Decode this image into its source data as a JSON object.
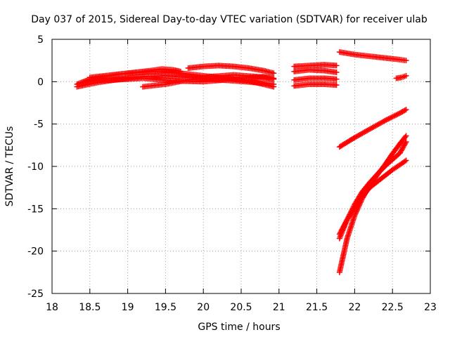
{
  "chart_data": {
    "type": "scatter",
    "title": "Day 037 of 2015, Sidereal Day-to-day VTEC variation (SDTVAR) for receiver ulab",
    "xlabel": "GPS time / hours",
    "ylabel": "SDTVAR / TECUs",
    "xlim": [
      18,
      23
    ],
    "ylim": [
      -25,
      5
    ],
    "xticks": [
      "18",
      "18.5",
      "19",
      "19.5",
      "20",
      "20.5",
      "21",
      "21.5",
      "22",
      "22.5",
      "23"
    ],
    "yticks": [
      "5",
      "0",
      "-5",
      "-10",
      "-15",
      "-20",
      "-25"
    ],
    "grid": true,
    "marker": "+",
    "color": "#ff0000",
    "series": [
      {
        "x": [
          18.33,
          18.5,
          18.7,
          18.9,
          19.1,
          19.3,
          19.45,
          19.6,
          19.7
        ],
        "y": [
          -0.3,
          0.3,
          0.6,
          0.9,
          1.1,
          1.3,
          1.5,
          1.4,
          1.2
        ]
      },
      {
        "x": [
          19.8,
          20.0,
          20.2,
          20.4,
          20.6,
          20.8,
          20.93
        ],
        "y": [
          1.6,
          1.8,
          1.9,
          1.8,
          1.6,
          1.3,
          1.0
        ]
      },
      {
        "x": [
          18.33,
          18.6,
          18.9,
          19.2,
          19.5,
          19.8,
          20.1,
          20.4,
          20.7,
          20.93
        ],
        "y": [
          -0.6,
          -0.1,
          0.3,
          0.6,
          0.7,
          0.5,
          0.3,
          0.1,
          -0.1,
          -0.3
        ]
      },
      {
        "x": [
          18.45,
          18.8,
          19.2,
          19.6,
          20.0,
          20.4,
          20.8,
          20.93
        ],
        "y": [
          0.0,
          0.2,
          0.4,
          0.1,
          0.0,
          0.3,
          0.6,
          0.4
        ]
      },
      {
        "x": [
          19.2,
          19.5,
          19.8,
          20.1,
          20.4,
          20.7,
          20.93
        ],
        "y": [
          -0.6,
          -0.3,
          0.2,
          0.6,
          0.8,
          0.6,
          0.3
        ]
      },
      {
        "x": [
          18.5,
          18.9,
          19.3,
          19.7,
          20.0,
          20.3,
          20.6,
          20.93
        ],
        "y": [
          0.5,
          0.9,
          1.2,
          1.0,
          0.7,
          0.4,
          0.1,
          -0.6
        ]
      },
      {
        "x": [
          21.2,
          21.4,
          21.6,
          21.76
        ],
        "y": [
          1.8,
          1.9,
          2.0,
          1.9
        ]
      },
      {
        "x": [
          21.2,
          21.4,
          21.6,
          21.76
        ],
        "y": [
          1.2,
          1.4,
          1.3,
          1.1
        ]
      },
      {
        "x": [
          21.2,
          21.4,
          21.6,
          21.76
        ],
        "y": [
          0.2,
          0.4,
          0.4,
          0.3
        ]
      },
      {
        "x": [
          21.2,
          21.4,
          21.6,
          21.76
        ],
        "y": [
          -0.5,
          -0.3,
          -0.3,
          -0.4
        ]
      },
      {
        "x": [
          21.8,
          22.0,
          22.2,
          22.4,
          22.6,
          22.68
        ],
        "y": [
          3.5,
          3.2,
          3.0,
          2.8,
          2.6,
          2.5
        ]
      },
      {
        "x": [
          22.55,
          22.62,
          22.68
        ],
        "y": [
          0.4,
          0.5,
          0.7
        ]
      },
      {
        "x": [
          21.8,
          22.0,
          22.2,
          22.4,
          22.6,
          22.68
        ],
        "y": [
          -7.7,
          -6.6,
          -5.6,
          -4.6,
          -3.7,
          -3.3
        ]
      },
      {
        "x": [
          21.8,
          21.9,
          22.0,
          22.1,
          22.2,
          22.3,
          22.4,
          22.5,
          22.6,
          22.68
        ],
        "y": [
          -22.5,
          -18.5,
          -15.8,
          -13.8,
          -12.3,
          -11.0,
          -9.8,
          -8.5,
          -7.3,
          -6.4
        ]
      },
      {
        "x": [
          21.8,
          21.9,
          22.0,
          22.1,
          22.2,
          22.3,
          22.4,
          22.5,
          22.6,
          22.68
        ],
        "y": [
          -18.5,
          -16.3,
          -14.5,
          -13.0,
          -11.9,
          -10.9,
          -10.0,
          -9.2,
          -8.4,
          -7.1
        ]
      },
      {
        "x": [
          21.8,
          21.9,
          22.0,
          22.1,
          22.2,
          22.3,
          22.4,
          22.5,
          22.6,
          22.68
        ],
        "y": [
          -18.0,
          -16.3,
          -14.9,
          -13.6,
          -12.5,
          -11.8,
          -11.1,
          -10.4,
          -9.8,
          -9.3
        ]
      }
    ]
  }
}
